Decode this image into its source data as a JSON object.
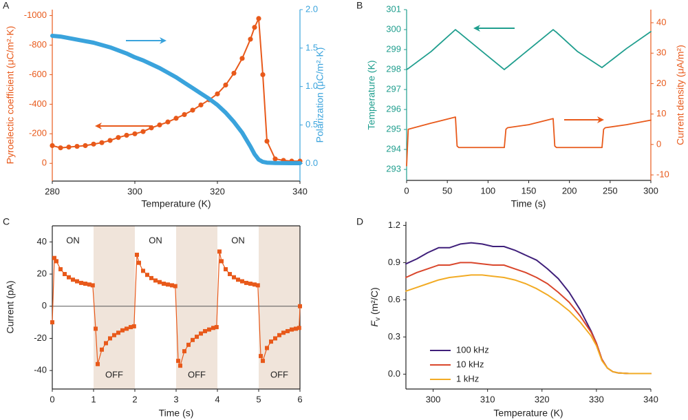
{
  "chart_data": [
    {
      "type": "line",
      "label": "A",
      "xlabel": "Temperature (K)",
      "ylabel": "Pyroelectic coefficient (μC/m²·K)",
      "y2label": "Polarization (μC/m²·K)",
      "xlim": [
        280,
        340
      ],
      "xticks": [
        280,
        300,
        320,
        340
      ],
      "ylim": [
        120,
        -1040
      ],
      "yticks": [
        -1000,
        -800,
        -600,
        -400,
        -200,
        0
      ],
      "y2lim": [
        -0.23,
        2.0
      ],
      "y2ticks": [
        {
          "value": 0,
          "label": "0.0"
        },
        0.5,
        {
          "value": 1,
          "label": "1.0"
        },
        1.5,
        {
          "value": 2,
          "label": "2.0"
        }
      ],
      "ycolor": "#e8591a",
      "y2color": "#3aa3dc",
      "x": [
        280,
        282,
        284,
        286,
        288,
        290,
        292,
        294,
        296,
        298,
        300,
        302,
        304,
        306,
        308,
        310,
        312,
        314,
        316,
        318,
        320,
        322,
        324,
        326,
        328,
        329,
        330,
        331,
        332,
        334,
        336,
        338,
        340
      ],
      "series": [
        {
          "color": "#e8591a",
          "marker": "circle",
          "line": true,
          "values": [
            -120,
            -105,
            -110,
            -115,
            -120,
            -130,
            -140,
            -155,
            -175,
            -190,
            -200,
            -215,
            -240,
            -260,
            -280,
            -305,
            -330,
            -360,
            -395,
            -430,
            -470,
            -530,
            -610,
            -710,
            -840,
            -920,
            -980,
            -600,
            -150,
            -30,
            -20,
            -15,
            -15
          ]
        },
        {
          "color": "#3aa3dc",
          "marker": "none",
          "line": true,
          "axis": "y2",
          "values": [
            1.66,
            1.65,
            1.63,
            1.61,
            1.59,
            1.57,
            1.54,
            1.51,
            1.47,
            1.43,
            1.38,
            1.34,
            1.29,
            1.24,
            1.18,
            1.12,
            1.05,
            0.98,
            0.91,
            0.84,
            0.76,
            0.66,
            0.54,
            0.4,
            0.22,
            0.12,
            0.05,
            0.02,
            0.01,
            0.005,
            0.004,
            0.003,
            0.003
          ]
        }
      ]
    },
    {
      "type": "line",
      "label": "B",
      "xlabel": "Time (s)",
      "ylabel": "Temperature (K)",
      "y2label": "Current density (μA/m²)",
      "xlim": [
        0,
        300
      ],
      "xticks": [
        0,
        50,
        100,
        150,
        200,
        250,
        300
      ],
      "ylim": [
        292.45,
        301
      ],
      "yticks": [
        293,
        294,
        295,
        296,
        297,
        298,
        299,
        300,
        301
      ],
      "y2lim": [
        -11.8,
        44.3
      ],
      "y2ticks": [
        -10,
        0,
        10,
        20,
        30,
        40
      ],
      "ycolor": "#1f9e8e",
      "y2color": "#e8591a",
      "x": [
        0,
        2,
        30,
        60,
        62,
        64,
        90,
        120,
        122,
        124,
        150,
        180,
        182,
        184,
        210,
        240,
        242,
        244,
        270,
        300
      ],
      "series": [
        {
          "color": "#1f9e8e",
          "marker": "none",
          "line": true,
          "values": [
            298.0,
            298.05,
            298.9,
            300.0,
            299.93,
            299.87,
            299.0,
            298.0,
            298.07,
            298.13,
            299.0,
            300.0,
            299.93,
            299.87,
            298.9,
            298.1,
            298.17,
            298.23,
            299.05,
            299.9
          ]
        },
        {
          "color": "#e8591a",
          "marker": "none",
          "line": true,
          "axis": "y2",
          "values": [
            -7,
            5,
            7,
            9,
            -0.5,
            -1,
            -1,
            -1,
            5,
            5.5,
            6.5,
            8.5,
            -0.5,
            -1,
            -1,
            -1,
            5,
            5.5,
            6.5,
            8
          ]
        }
      ]
    },
    {
      "type": "line",
      "label": "C",
      "xlabel": "Time (s)",
      "ylabel": "Current (pA)",
      "xlim": [
        0,
        6
      ],
      "xticks": [
        0,
        1,
        2,
        3,
        4,
        5,
        6
      ],
      "ylim": [
        -51.5,
        50
      ],
      "yticks": [
        -40,
        -20,
        0,
        20,
        40
      ],
      "zero_line": true,
      "shaded": [
        [
          1,
          2
        ],
        [
          3,
          4
        ],
        [
          5,
          6
        ]
      ],
      "shade_color": "#f0e4da",
      "annotations": [
        "ON",
        "OFF",
        "ON",
        "OFF",
        "ON",
        "OFF"
      ],
      "x": [
        0,
        0.05,
        0.1,
        0.2,
        0.3,
        0.4,
        0.5,
        0.6,
        0.7,
        0.8,
        0.9,
        0.98,
        1.05,
        1.1,
        1.2,
        1.3,
        1.4,
        1.5,
        1.6,
        1.7,
        1.8,
        1.9,
        1.98,
        2.05,
        2.1,
        2.2,
        2.3,
        2.4,
        2.5,
        2.6,
        2.7,
        2.8,
        2.9,
        2.98,
        3.05,
        3.1,
        3.2,
        3.3,
        3.4,
        3.5,
        3.6,
        3.7,
        3.8,
        3.9,
        3.98,
        4.05,
        4.1,
        4.2,
        4.3,
        4.4,
        4.5,
        4.6,
        4.7,
        4.8,
        4.9,
        4.98,
        5.05,
        5.1,
        5.2,
        5.3,
        5.4,
        5.5,
        5.6,
        5.7,
        5.8,
        5.9,
        5.98,
        6.0
      ],
      "series": [
        {
          "color": "#e8591a",
          "marker": "square",
          "line": true,
          "values": [
            -10,
            30,
            28,
            23,
            20,
            18,
            16.5,
            15.5,
            14.5,
            14,
            13.5,
            13,
            -14,
            -36,
            -27,
            -23,
            -20,
            -18,
            -16.5,
            -15,
            -14,
            -13,
            -12.5,
            32,
            27,
            22,
            19.5,
            17.5,
            16,
            15,
            14,
            13.5,
            13,
            12.5,
            -34,
            -37,
            -28,
            -24,
            -21,
            -19,
            -17,
            -15.5,
            -14.5,
            -13.5,
            -13,
            34,
            28,
            23,
            20,
            18,
            16.5,
            15.5,
            14.5,
            14,
            13.5,
            13,
            -31,
            -34,
            -26,
            -22,
            -20,
            -18,
            -16.5,
            -15.5,
            -14.5,
            -14,
            -13.5,
            0
          ]
        }
      ]
    },
    {
      "type": "line",
      "label": "D",
      "xlabel": "Temperature (K)",
      "ylabel": {
        "symbol": "F",
        "subscript": "v",
        "unit": "(m²/C)"
      },
      "xlim": [
        295,
        340
      ],
      "xticks": [
        300,
        310,
        320,
        330,
        340
      ],
      "ylim": [
        -0.12,
        1.23
      ],
      "yticks": [
        {
          "value": 0,
          "label": "0.0"
        },
        0.3,
        0.6,
        0.9,
        1.2
      ],
      "legend": "lower left",
      "x": [
        295,
        297,
        299,
        301,
        303,
        305,
        307,
        309,
        311,
        313,
        315,
        317,
        319,
        321,
        323,
        325,
        327,
        329,
        330,
        331,
        332,
        333,
        334,
        336,
        338,
        340
      ],
      "series": [
        {
          "name": "100 kHz",
          "color": "#3f1f7a",
          "marker": "none",
          "line": true,
          "values": [
            0.89,
            0.93,
            0.98,
            1.02,
            1.02,
            1.05,
            1.06,
            1.05,
            1.03,
            1.03,
            1.0,
            0.96,
            0.92,
            0.85,
            0.77,
            0.66,
            0.52,
            0.35,
            0.25,
            0.12,
            0.05,
            0.02,
            0.01,
            0.005,
            0.005,
            0.005
          ]
        },
        {
          "name": "10 kHz",
          "color": "#d9462b",
          "marker": "none",
          "line": true,
          "values": [
            0.78,
            0.82,
            0.85,
            0.88,
            0.88,
            0.9,
            0.9,
            0.89,
            0.88,
            0.88,
            0.85,
            0.82,
            0.78,
            0.73,
            0.66,
            0.58,
            0.47,
            0.34,
            0.25,
            0.12,
            0.05,
            0.02,
            0.01,
            0.005,
            0.005,
            0.005
          ]
        },
        {
          "name": "1 kHz",
          "color": "#f2ab24",
          "marker": "none",
          "line": true,
          "values": [
            0.67,
            0.7,
            0.73,
            0.76,
            0.78,
            0.79,
            0.8,
            0.8,
            0.79,
            0.78,
            0.76,
            0.73,
            0.69,
            0.64,
            0.58,
            0.51,
            0.42,
            0.31,
            0.23,
            0.11,
            0.05,
            0.02,
            0.01,
            0.005,
            0.005,
            0.005
          ]
        }
      ]
    }
  ]
}
